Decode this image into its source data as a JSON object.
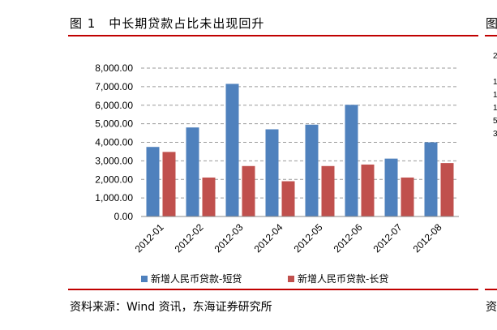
{
  "figure": {
    "title": "图 1　中长期贷款占比未出现回升",
    "title_right_fragment": "图",
    "source": "资料来源：Wind 资讯，东海证券研究所",
    "source_right_fragment": "资",
    "accent_color": "#C00000",
    "right_fragments": [
      "2",
      "1",
      "1",
      "1",
      "5",
      "3"
    ]
  },
  "chart_data": {
    "type": "bar",
    "title": "",
    "xlabel": "",
    "ylabel": "",
    "categories": [
      "2012-01",
      "2012-02",
      "2012-03",
      "2012-04",
      "2012-05",
      "2012-06",
      "2012-07",
      "2012-08"
    ],
    "series": [
      {
        "name": "新增人民币贷款-短贷",
        "color": "#4F81BD",
        "values": [
          3750,
          4800,
          7150,
          4700,
          4950,
          6020,
          3120,
          4000
        ]
      },
      {
        "name": "新增人民币贷款-长贷",
        "color": "#C0504D",
        "values": [
          3480,
          2100,
          2720,
          1900,
          2720,
          2800,
          2100,
          2880
        ]
      }
    ],
    "ylim": [
      0,
      8000
    ],
    "yticks": [
      "0.00",
      "1,000.00",
      "2,000.00",
      "3,000.00",
      "4,000.00",
      "5,000.00",
      "6,000.00",
      "7,000.00",
      "8,000.00"
    ],
    "grid": true,
    "legend": "bottom"
  }
}
